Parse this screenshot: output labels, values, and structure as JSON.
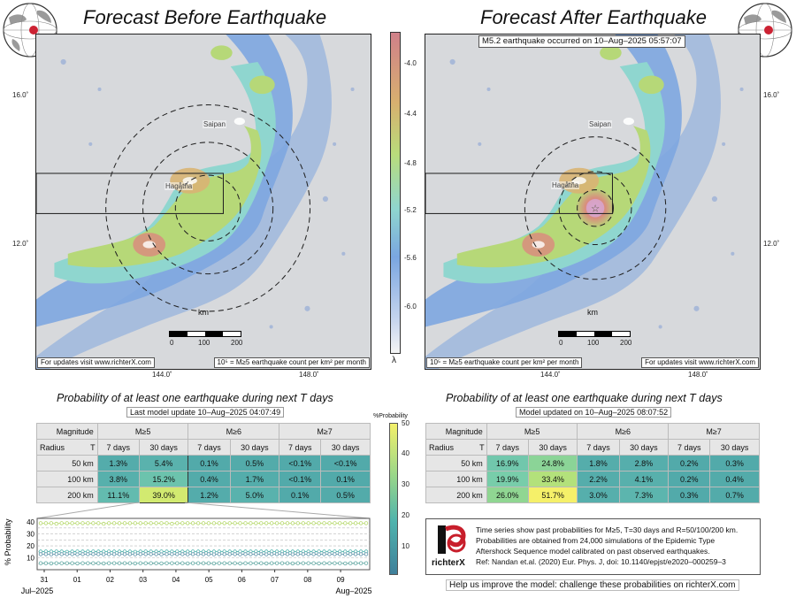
{
  "titles": {
    "left": "Forecast Before Earthquake",
    "right": "Forecast After Earthquake"
  },
  "event_label": "M5.2 earthquake occurred on 10–Aug–2025 05:57:07",
  "lat_ticks": [
    "16.0˚",
    "12.0˚"
  ],
  "lon_ticks": [
    "144.0˚",
    "148.0˚"
  ],
  "places": {
    "saipan": "Saipan",
    "hagatna": "Hagåtña"
  },
  "scalebar": {
    "unit": "km",
    "ticks": [
      "0",
      "100",
      "200"
    ]
  },
  "map_notes": {
    "updates": "For updates visit www.richterX.com",
    "units": "10⁵ = M≥5 earthquake count per km² per month"
  },
  "colorbar": {
    "ticks": [
      "-4.0",
      "-4.4",
      "-4.8",
      "-5.2",
      "-5.6",
      "-6.0"
    ],
    "label": "λ"
  },
  "prob_title": "Probability of at least one earthquake during next T days",
  "left_update": "Last model update 10–Aug–2025 04:07:49",
  "right_update": "Model updated on 10–Aug–2025 08:07:52",
  "table_headers": {
    "magnitude": "Magnitude",
    "radius": "Radius",
    "T": "T",
    "mags": [
      "M≥5",
      "M≥6",
      "M≥7"
    ],
    "days": [
      "7 days",
      "30 days",
      "7 days",
      "30 days",
      "7 days",
      "30 days"
    ]
  },
  "radii": [
    "50 km",
    "100 km",
    "200 km"
  ],
  "left_table": [
    [
      "1.3%",
      "5.4%",
      "0.1%",
      "0.5%",
      "<0.1%",
      "<0.1%"
    ],
    [
      "3.8%",
      "15.2%",
      "0.4%",
      "1.7%",
      "<0.1%",
      "0.1%"
    ],
    [
      "11.1%",
      "39.0%",
      "1.2%",
      "5.0%",
      "0.1%",
      "0.5%"
    ]
  ],
  "right_table": [
    [
      "16.9%",
      "24.8%",
      "1.8%",
      "2.8%",
      "0.2%",
      "0.3%"
    ],
    [
      "19.9%",
      "33.4%",
      "2.2%",
      "4.1%",
      "0.2%",
      "0.4%"
    ],
    [
      "26.0%",
      "51.7%",
      "3.0%",
      "7.3%",
      "0.3%",
      "0.7%"
    ]
  ],
  "prob_colorbar": {
    "label": "%Probability",
    "ticks": [
      "50",
      "40",
      "30",
      "20",
      "10"
    ]
  },
  "chart_data": {
    "type": "line",
    "ylabel": "% Probability",
    "ylim": [
      0,
      43
    ],
    "yticks": [
      10,
      20,
      30,
      40
    ],
    "x_ticks": [
      "31",
      "01",
      "02",
      "03",
      "04",
      "05",
      "06",
      "07",
      "08",
      "09"
    ],
    "x_month_labels": [
      "Jul–2025",
      "Aug–2025"
    ],
    "series": [
      {
        "values": [
          39,
          39,
          39,
          38.5,
          39,
          39,
          39,
          39,
          39,
          39,
          39,
          39,
          38.5,
          39,
          39,
          39,
          39,
          39,
          39,
          39,
          39,
          39,
          39,
          39,
          39,
          38.5,
          39,
          39,
          39,
          39,
          39,
          39,
          39,
          39,
          39,
          39,
          39,
          39,
          39,
          39,
          39,
          39,
          39,
          39,
          39,
          39,
          39,
          39,
          39,
          39,
          39,
          39,
          39,
          39,
          39,
          39,
          39,
          39,
          39,
          39,
          39,
          39,
          39
        ],
        "color": "#b5d86a"
      },
      {
        "values": [
          15.2,
          15.3,
          15.2,
          15.3,
          15.2,
          15,
          15.2,
          15.3,
          15.2,
          15.2,
          15.3,
          15.2,
          15.2,
          15.3,
          15.2,
          15.2,
          15.3,
          15.2,
          15,
          15.2,
          15.3,
          15.2,
          15.2,
          15.3,
          15.2,
          15.2,
          15.3,
          15.2,
          15.2,
          15.3,
          15.2,
          15.2,
          15.3,
          15.2,
          15.2,
          15.3,
          15.2,
          15.2,
          15.3,
          15.2,
          15.2,
          15.3,
          15.2,
          15.2,
          15.3,
          15.2,
          15.2,
          15.3,
          15.2,
          15.2,
          15.3,
          15.2,
          15.2,
          15.3,
          15.2,
          15.2,
          15.3,
          15.2,
          15.2,
          15.3,
          15.2,
          15.2,
          15.2
        ],
        "color": "#4fb3ad"
      },
      {
        "values": [
          13,
          13,
          12.8,
          13,
          13,
          13,
          13,
          12.8,
          13,
          13,
          13,
          13,
          12.8,
          13,
          13,
          13,
          13,
          13,
          12.8,
          13,
          13,
          13,
          13,
          12.8,
          13,
          13,
          13,
          13,
          12.8,
          13,
          13,
          13,
          13,
          12.8,
          13,
          13,
          13,
          13,
          12.8,
          13,
          13,
          13,
          13,
          12.8,
          13,
          13,
          13,
          13,
          12.8,
          13,
          13,
          13,
          13,
          12.8,
          13,
          13,
          13,
          13,
          12.8,
          13,
          13,
          13,
          13
        ],
        "color": "#5d93a8"
      },
      {
        "values": [
          5.4,
          5.4,
          5.3,
          5.4,
          5.4,
          5.4,
          5.4,
          5.3,
          5.4,
          5.4,
          5.4,
          5.4,
          5.3,
          5.4,
          5.4,
          5.4,
          5.4,
          5.4,
          5.3,
          5.4,
          5.4,
          5.4,
          5.4,
          5.3,
          5.4,
          5.4,
          5.4,
          5.4,
          5.3,
          5.4,
          5.4,
          5.4,
          5.4,
          5.3,
          5.4,
          5.4,
          5.4,
          5.4,
          5.3,
          5.4,
          5.4,
          5.4,
          5.4,
          5.3,
          5.4,
          5.4,
          5.4,
          5.4,
          5.3,
          5.4,
          5.4,
          5.4,
          5.4,
          5.3,
          5.4,
          5.4,
          5.4,
          5.4,
          5.3,
          5.4,
          5.4,
          5.4,
          5.4
        ],
        "color": "#5fa8a2"
      }
    ]
  },
  "info_text": [
    "Time series show past probabilities for M≥5, T=30 days and R=50/100/200 km.",
    "Probabilities are obtained from 24,000 simulations of the Epidemic Type",
    "Aftershock Sequence model calibrated on past observed earthquakes.",
    "Ref: Nandan et.al. (2020) Eur. Phys. J, doi: 10.1140/epjst/e2020–000259–3"
  ],
  "logo_text": "richterX",
  "help_text": "Help us improve the model: challenge these probabilities on richterX.com",
  "colors": {
    "low": "#4a78c8",
    "mid": "#8fd0c4",
    "green": "#b6d878",
    "high": "#d98d7e",
    "highlight": "#eef070"
  }
}
